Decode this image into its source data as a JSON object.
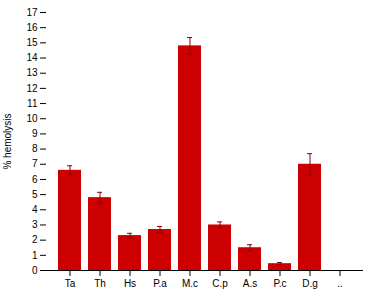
{
  "chart_data": {
    "type": "bar",
    "categories": [
      "Ta",
      "Th",
      "Hs",
      "P.a",
      "M.c",
      "C.p",
      "A.s",
      "P.c",
      "D.g",
      ".."
    ],
    "values": [
      6.6,
      4.8,
      2.3,
      2.7,
      14.8,
      3.0,
      1.5,
      0.45,
      7.0,
      0.0
    ],
    "errors": [
      0.3,
      0.35,
      0.15,
      0.2,
      0.55,
      0.2,
      0.2,
      0.08,
      0.7,
      0.0
    ],
    "color": "#cc0000",
    "ylabel": "% hemolysis",
    "ylim": [
      0,
      17
    ],
    "yticks": [
      0,
      1,
      2,
      3,
      4,
      5,
      6,
      7,
      8,
      9,
      10,
      11,
      12,
      13,
      14,
      15,
      16,
      17
    ],
    "grid": false
  }
}
